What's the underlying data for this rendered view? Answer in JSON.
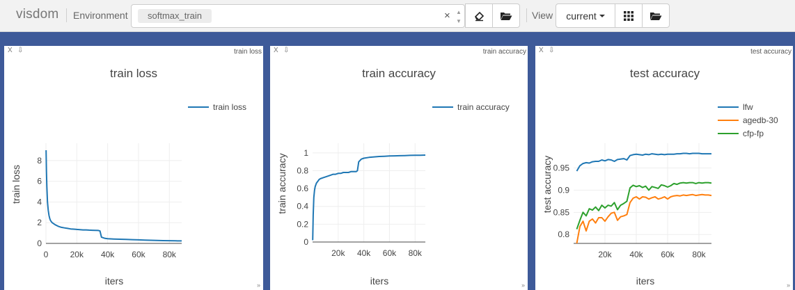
{
  "app": {
    "logo": "visdom"
  },
  "environment": {
    "label": "Environment",
    "selected": "softmax_train",
    "clear_glyph": "×",
    "up_caret": "▲",
    "down_caret": "▼"
  },
  "view": {
    "label": "View",
    "selected": "current"
  },
  "icons": [
    "eraser-icon",
    "folder-open-icon",
    "grid-icon",
    "folder-open-icon"
  ],
  "colors": {
    "navbar": "#f2f2f2",
    "workspace": "#3e5a99",
    "lfw": "#1f77b4",
    "agedb": "#ff7f0e",
    "cfp": "#2ca02c"
  },
  "panes": [
    {
      "close": "X",
      "download": "⇩",
      "tag": "train loss",
      "resize": "»"
    },
    {
      "close": "X",
      "download": "⇩",
      "tag": "train accuracy",
      "resize": "»"
    },
    {
      "close": "X",
      "download": "⇩",
      "tag": "test accuracy",
      "resize": "»"
    }
  ],
  "chart_data": [
    {
      "type": "line",
      "title": "train loss",
      "xlabel": "iters",
      "ylabel": "train loss",
      "xlim": [
        0,
        88000
      ],
      "ylim": [
        0,
        9
      ],
      "x_ticks": [
        "0",
        "20k",
        "40k",
        "60k",
        "80k"
      ],
      "x_tick_values": [
        0,
        20000,
        40000,
        60000,
        80000
      ],
      "y_ticks": [
        "0",
        "2",
        "4",
        "6",
        "8"
      ],
      "y_tick_values": [
        0,
        2,
        4,
        6,
        8
      ],
      "grid": true,
      "legend": "right",
      "series": [
        {
          "name": "train loss",
          "color": "#1f77b4",
          "x": [
            100,
            300,
            600,
            1000,
            1500,
            2000,
            2500,
            3000,
            4000,
            5000,
            6000,
            8000,
            10000,
            12000,
            14000,
            16000,
            18000,
            20000,
            22000,
            24000,
            26000,
            28000,
            30000,
            32000,
            34000,
            35000,
            36000,
            38000,
            40000,
            44000,
            48000,
            52000,
            56000,
            60000,
            64000,
            68000,
            72000,
            76000,
            80000,
            84000,
            88000
          ],
          "y": [
            9.0,
            7.0,
            5.5,
            4.0,
            3.2,
            2.7,
            2.4,
            2.2,
            2.0,
            1.9,
            1.8,
            1.65,
            1.55,
            1.5,
            1.45,
            1.4,
            1.38,
            1.35,
            1.33,
            1.3,
            1.3,
            1.28,
            1.27,
            1.26,
            1.25,
            1.2,
            0.6,
            0.5,
            0.45,
            0.42,
            0.4,
            0.38,
            0.36,
            0.34,
            0.32,
            0.3,
            0.28,
            0.27,
            0.26,
            0.25,
            0.24
          ]
        }
      ]
    },
    {
      "type": "line",
      "title": "train accuracy",
      "xlabel": "iters",
      "ylabel": "train accuracy",
      "xlim": [
        0,
        88000
      ],
      "ylim": [
        0,
        1.03
      ],
      "x_ticks": [
        "20k",
        "40k",
        "60k",
        "80k"
      ],
      "x_tick_values": [
        20000,
        40000,
        60000,
        80000
      ],
      "y_ticks": [
        "0",
        "0.2",
        "0.4",
        "0.6",
        "0.8",
        "1"
      ],
      "y_tick_values": [
        0,
        0.2,
        0.4,
        0.6,
        0.8,
        1.0
      ],
      "grid": true,
      "legend": "right",
      "series": [
        {
          "name": "train accuracy",
          "color": "#1f77b4",
          "x": [
            100,
            500,
            1000,
            1500,
            2000,
            3000,
            4000,
            5000,
            6000,
            8000,
            10000,
            12000,
            14000,
            16000,
            18000,
            20000,
            22000,
            24000,
            26000,
            28000,
            30000,
            32000,
            34000,
            35000,
            36000,
            38000,
            40000,
            44000,
            48000,
            52000,
            56000,
            60000,
            64000,
            68000,
            72000,
            76000,
            80000,
            84000,
            88000
          ],
          "y": [
            0.02,
            0.3,
            0.5,
            0.58,
            0.62,
            0.66,
            0.68,
            0.7,
            0.71,
            0.72,
            0.73,
            0.74,
            0.75,
            0.76,
            0.76,
            0.77,
            0.77,
            0.78,
            0.78,
            0.78,
            0.79,
            0.79,
            0.79,
            0.8,
            0.9,
            0.93,
            0.94,
            0.95,
            0.955,
            0.96,
            0.962,
            0.965,
            0.967,
            0.968,
            0.97,
            0.972,
            0.973,
            0.974,
            0.975
          ]
        }
      ]
    },
    {
      "type": "line",
      "title": "test accuracy",
      "xlabel": "iters",
      "ylabel": "test accuracy",
      "xlim": [
        0,
        88000
      ],
      "ylim": [
        0.78,
        0.99
      ],
      "x_ticks": [
        "20k",
        "40k",
        "60k",
        "80k"
      ],
      "x_tick_values": [
        20000,
        40000,
        60000,
        80000
      ],
      "y_ticks": [
        "0.8",
        "0.85",
        "0.9",
        "0.95"
      ],
      "y_tick_values": [
        0.8,
        0.85,
        0.9,
        0.95
      ],
      "grid": true,
      "legend": "right",
      "x": [
        2000,
        4000,
        6000,
        8000,
        10000,
        12000,
        14000,
        16000,
        18000,
        20000,
        22000,
        24000,
        26000,
        28000,
        30000,
        32000,
        34000,
        36000,
        38000,
        40000,
        42000,
        44000,
        46000,
        48000,
        50000,
        52000,
        54000,
        56000,
        58000,
        60000,
        62000,
        64000,
        66000,
        68000,
        70000,
        72000,
        74000,
        76000,
        78000,
        80000,
        82000,
        84000,
        86000,
        88000
      ],
      "series": [
        {
          "name": "lfw",
          "color": "#1f77b4",
          "y": [
            0.943,
            0.955,
            0.96,
            0.962,
            0.961,
            0.964,
            0.965,
            0.965,
            0.968,
            0.966,
            0.969,
            0.968,
            0.965,
            0.969,
            0.97,
            0.971,
            0.968,
            0.978,
            0.98,
            0.981,
            0.98,
            0.979,
            0.981,
            0.98,
            0.982,
            0.981,
            0.98,
            0.981,
            0.98,
            0.981,
            0.981,
            0.981,
            0.982,
            0.982,
            0.983,
            0.983,
            0.982,
            0.983,
            0.983,
            0.983,
            0.982,
            0.982,
            0.982,
            0.982
          ]
        },
        {
          "name": "agedb-30",
          "color": "#ff7f0e",
          "y": [
            0.78,
            0.818,
            0.83,
            0.808,
            0.83,
            0.835,
            0.826,
            0.838,
            0.838,
            0.83,
            0.84,
            0.848,
            0.85,
            0.832,
            0.84,
            0.842,
            0.845,
            0.872,
            0.882,
            0.885,
            0.88,
            0.885,
            0.884,
            0.88,
            0.883,
            0.885,
            0.88,
            0.882,
            0.885,
            0.88,
            0.885,
            0.887,
            0.888,
            0.887,
            0.889,
            0.888,
            0.889,
            0.89,
            0.888,
            0.889,
            0.89,
            0.889,
            0.889,
            0.888
          ]
        },
        {
          "name": "cfp-fp",
          "color": "#2ca02c",
          "y": [
            0.812,
            0.832,
            0.85,
            0.842,
            0.858,
            0.855,
            0.862,
            0.854,
            0.866,
            0.86,
            0.866,
            0.864,
            0.872,
            0.856,
            0.866,
            0.87,
            0.875,
            0.905,
            0.911,
            0.908,
            0.91,
            0.906,
            0.909,
            0.9,
            0.908,
            0.906,
            0.904,
            0.912,
            0.91,
            0.907,
            0.91,
            0.915,
            0.913,
            0.916,
            0.917,
            0.916,
            0.917,
            0.917,
            0.915,
            0.917,
            0.916,
            0.917,
            0.917,
            0.916
          ]
        }
      ]
    }
  ]
}
